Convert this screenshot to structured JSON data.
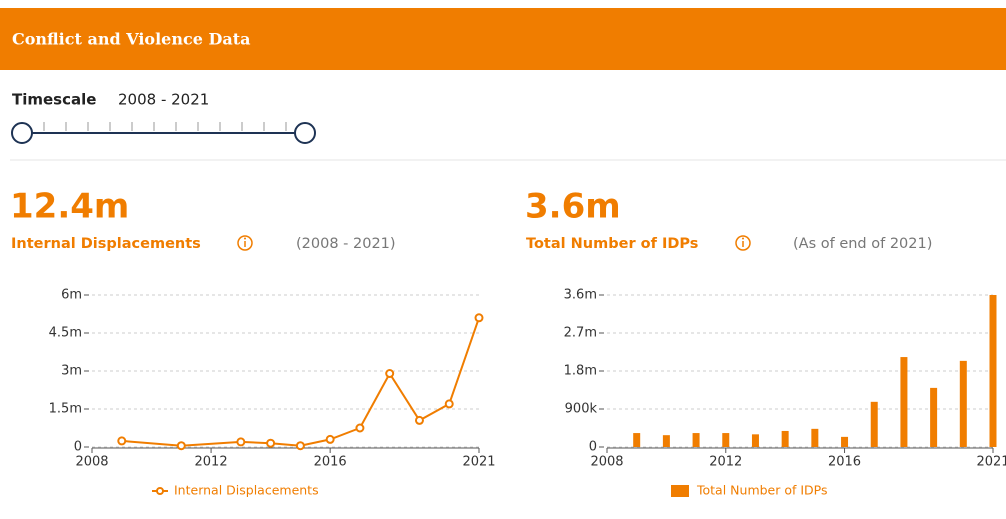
{
  "header": {
    "title": "Conflict and Violence Data"
  },
  "timescale": {
    "label": "Timescale",
    "range": "2008 - 2021"
  },
  "chart_data": [
    {
      "type": "line",
      "headline": "12.4m",
      "subtitle": "Internal Displacements",
      "period": "(2008 - 2021)",
      "x": [
        2009,
        2011,
        2013,
        2014,
        2015,
        2016,
        2017,
        2018,
        2019,
        2020,
        2021
      ],
      "series": [
        {
          "name": "Internal Displacements",
          "color": "#f07d00",
          "values": [
            0.24,
            0.05,
            0.2,
            0.15,
            0.05,
            0.3,
            0.75,
            2.9,
            1.05,
            1.7,
            5.1
          ]
        }
      ],
      "xlim": [
        2008,
        2021
      ],
      "xticks": [
        2008,
        2012,
        2016,
        2021
      ],
      "ylim": [
        0,
        6
      ],
      "yticks": [
        0,
        {
          "value": 1.5,
          "label": "1.5m"
        },
        {
          "value": 3,
          "label": "3m"
        },
        {
          "value": 4.5,
          "label": "4.5m"
        },
        {
          "value": 6,
          "label": "6m"
        }
      ],
      "grid": true
    },
    {
      "type": "bar",
      "headline": "3.6m",
      "subtitle": "Total Number of IDPs",
      "period": "(As of end of 2021)",
      "x": [
        2009,
        2010,
        2011,
        2012,
        2013,
        2014,
        2015,
        2016,
        2017,
        2018,
        2019,
        2020,
        2021
      ],
      "series": [
        {
          "name": "Total Number of IDPs",
          "color": "#f07d00",
          "values": [
            0.33,
            0.28,
            0.33,
            0.33,
            0.3,
            0.38,
            0.43,
            0.24,
            1.07,
            2.13,
            1.4,
            2.04,
            3.6
          ]
        }
      ],
      "xlim": [
        2008,
        2021
      ],
      "xticks": [
        2008,
        2012,
        2016,
        2021
      ],
      "ylim": [
        0,
        3.6
      ],
      "yticks": [
        0,
        {
          "value": 0.9,
          "label": "900k"
        },
        {
          "value": 1.8,
          "label": "1.8m"
        },
        {
          "value": 2.7,
          "label": "2.7m"
        },
        {
          "value": 3.6,
          "label": "3.6m"
        }
      ],
      "grid": true
    }
  ]
}
